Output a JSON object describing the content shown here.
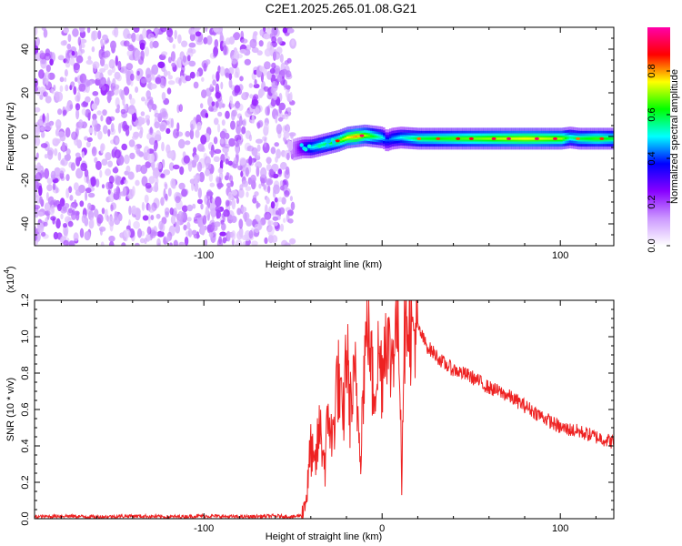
{
  "title": "C2E1.2025.265.01.08.G21",
  "chart_data": [
    {
      "type": "heatmap",
      "xlabel": "Height of straight line (km)",
      "ylabel": "Frequency (Hz)",
      "xlim": [
        -195,
        130
      ],
      "ylim": [
        -50,
        50
      ],
      "x_ticks": [
        -100,
        0,
        100
      ],
      "x_tick_labels": [
        "-100",
        "",
        "100"
      ],
      "y_ticks": [
        -40,
        -20,
        0,
        20,
        40
      ],
      "y_tick_labels": [
        "-40",
        "-20",
        "0",
        "20",
        "40"
      ],
      "noise_region_x": [
        -195,
        -50
      ],
      "ridge": {
        "x": [
          -50,
          -45,
          -40,
          -35,
          -30,
          -25,
          -20,
          -15,
          -10,
          -5,
          0,
          2,
          5,
          10,
          20,
          40,
          60,
          80,
          100,
          105,
          110,
          120,
          130
        ],
        "y": [
          -6,
          -5,
          -5,
          -4,
          -3,
          -2,
          -0.5,
          0,
          0.5,
          0,
          -0.5,
          -2,
          -1,
          -0.5,
          -1,
          -1,
          -1,
          -1,
          -1,
          -0.5,
          -1,
          -1,
          -1
        ],
        "amplitude": [
          0.15,
          0.35,
          0.5,
          0.55,
          0.6,
          0.65,
          0.75,
          0.8,
          0.7,
          0.6,
          0.5,
          0.4,
          0.45,
          0.5,
          0.6,
          0.65,
          0.7,
          0.75,
          0.7,
          0.55,
          0.6,
          0.65,
          0.6
        ]
      },
      "colorbar": {
        "label": "Normalized spectral amplitude",
        "range": [
          0,
          1
        ],
        "ticks": [
          0.0,
          0.2,
          0.4,
          0.6,
          0.8
        ],
        "tick_labels": [
          "0.0",
          "0.2",
          "0.4",
          "0.6",
          "0.8"
        ],
        "colors": [
          "#ffffff",
          "#cc99ff",
          "#8800ff",
          "#0000ff",
          "#00ffff",
          "#00ff00",
          "#ffff00",
          "#ff0000",
          "#ff00aa"
        ]
      }
    },
    {
      "type": "line",
      "xlabel": "Height of straight line (km)",
      "ylabel": "SNR (10 * v/v)",
      "y_multiplier_label": "(x10",
      "y_multiplier_exp": "4",
      "y_multiplier_close": ")",
      "xlim": [
        -195,
        130
      ],
      "ylim": [
        0,
        1.2
      ],
      "x_ticks": [
        -100,
        0,
        100
      ],
      "x_tick_labels": [
        "-100",
        "0",
        "100"
      ],
      "y_ticks": [
        0.0,
        0.2,
        0.4,
        0.6,
        0.8,
        1.0,
        1.2
      ],
      "y_tick_labels": [
        "0.0",
        "0.2",
        "0.4",
        "0.6",
        "0.8",
        "1.0",
        "1.2"
      ],
      "color": "#ee2222",
      "series": [
        {
          "x": [
            -195,
            -180,
            -160,
            -140,
            -120,
            -100,
            -80,
            -60,
            -50,
            -45,
            -42,
            -40,
            -38,
            -35,
            -32,
            -30,
            -28,
            -25,
            -22,
            -20,
            -18,
            -15,
            -12,
            -10,
            -8,
            -5,
            -2,
            0,
            2,
            5,
            8,
            10,
            11,
            12,
            14,
            16,
            20,
            25,
            30,
            35,
            40,
            50,
            60,
            70,
            80,
            90,
            100,
            110,
            120,
            130
          ],
          "y": [
            0.01,
            0.015,
            0.01,
            0.015,
            0.01,
            0.015,
            0.01,
            0.015,
            0.01,
            0.02,
            0.15,
            0.4,
            0.25,
            0.5,
            0.3,
            0.6,
            0.4,
            0.8,
            0.5,
            0.95,
            0.6,
            0.75,
            0.4,
            0.85,
            1.1,
            0.7,
            0.9,
            0.8,
            1.05,
            0.85,
            1.1,
            0.9,
            0.2,
            0.9,
            1.2,
            1.0,
            1.05,
            0.95,
            0.9,
            0.85,
            0.82,
            0.78,
            0.72,
            0.68,
            0.62,
            0.56,
            0.5,
            0.48,
            0.45,
            0.42
          ]
        }
      ]
    }
  ]
}
